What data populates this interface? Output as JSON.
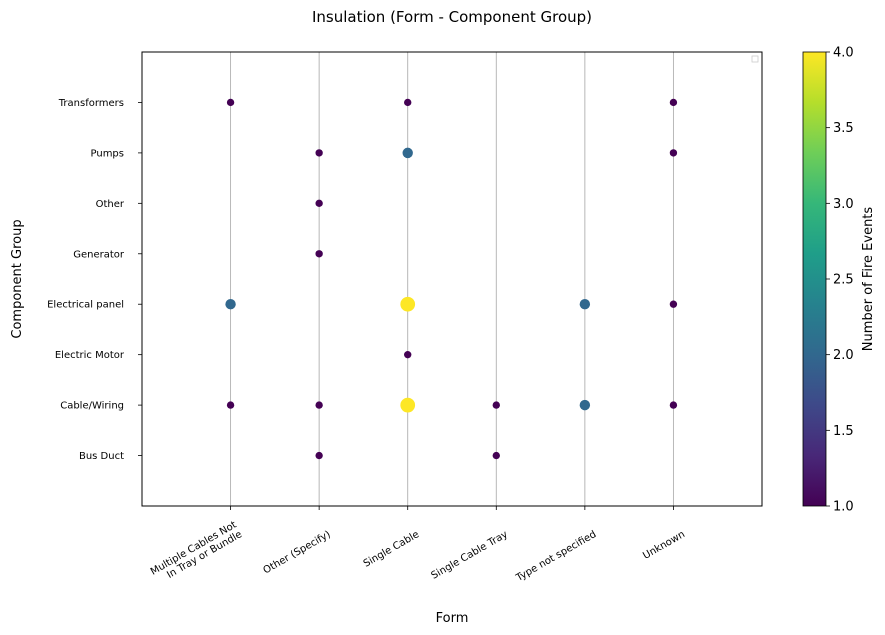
{
  "chart_data": {
    "type": "scatter",
    "title": "Insulation (Form - Component Group)",
    "xlabel": "Form",
    "ylabel": "Component Group",
    "x_categories": [
      "Multiple Cables Not\nIn Tray or Bundle",
      "Other (Specify)",
      "Single Cable",
      "Single Cable Tray",
      "Type not specified",
      "Unknown"
    ],
    "y_categories": [
      "Bus Duct",
      "Cable/Wiring",
      "Electric Motor",
      "Electrical panel",
      "Generator",
      "Other",
      "Pumps",
      "Transformers"
    ],
    "points": [
      {
        "x": "Multiple Cables Not\nIn Tray or Bundle",
        "y": "Transformers",
        "value": 1
      },
      {
        "x": "Single Cable",
        "y": "Transformers",
        "value": 1
      },
      {
        "x": "Unknown",
        "y": "Transformers",
        "value": 1
      },
      {
        "x": "Other (Specify)",
        "y": "Pumps",
        "value": 1
      },
      {
        "x": "Single Cable",
        "y": "Pumps",
        "value": 2
      },
      {
        "x": "Unknown",
        "y": "Pumps",
        "value": 1
      },
      {
        "x": "Other (Specify)",
        "y": "Other",
        "value": 1
      },
      {
        "x": "Other (Specify)",
        "y": "Generator",
        "value": 1
      },
      {
        "x": "Multiple Cables Not\nIn Tray or Bundle",
        "y": "Electrical panel",
        "value": 2
      },
      {
        "x": "Single Cable",
        "y": "Electrical panel",
        "value": 4
      },
      {
        "x": "Type not specified",
        "y": "Electrical panel",
        "value": 2
      },
      {
        "x": "Unknown",
        "y": "Electrical panel",
        "value": 1
      },
      {
        "x": "Single Cable",
        "y": "Electric Motor",
        "value": 1
      },
      {
        "x": "Multiple Cables Not\nIn Tray or Bundle",
        "y": "Cable/Wiring",
        "value": 1
      },
      {
        "x": "Other (Specify)",
        "y": "Cable/Wiring",
        "value": 1
      },
      {
        "x": "Single Cable",
        "y": "Cable/Wiring",
        "value": 4
      },
      {
        "x": "Single Cable Tray",
        "y": "Cable/Wiring",
        "value": 1
      },
      {
        "x": "Type not specified",
        "y": "Cable/Wiring",
        "value": 2
      },
      {
        "x": "Unknown",
        "y": "Cable/Wiring",
        "value": 1
      },
      {
        "x": "Other (Specify)",
        "y": "Bus Duct",
        "value": 1
      },
      {
        "x": "Single Cable Tray",
        "y": "Bus Duct",
        "value": 1
      }
    ],
    "colorbar": {
      "label": "Number of Fire Events",
      "range": [
        1.0,
        4.0
      ],
      "ticks": [
        "1.0",
        "1.5",
        "2.0",
        "2.5",
        "3.0",
        "3.5",
        "4.0"
      ],
      "colormap": "viridis"
    },
    "grid": "vertical lines at x categories",
    "legend": "empty legend box top-right"
  },
  "colors": {
    "axis": "#000000",
    "grid": "#b0b0b0",
    "viridis": [
      "#440154",
      "#482878",
      "#3e4989",
      "#31688e",
      "#26828e",
      "#1f9e89",
      "#35b779",
      "#6ece58",
      "#b5de2b",
      "#fde725"
    ]
  }
}
